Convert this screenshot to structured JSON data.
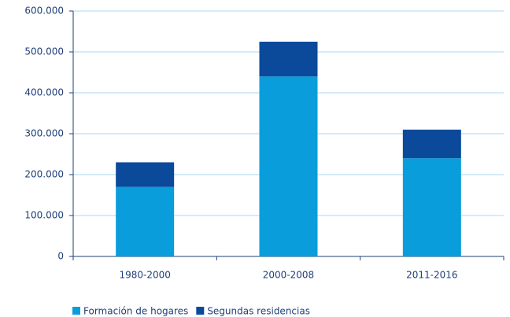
{
  "chart_data": {
    "type": "stacked_bar",
    "categories": [
      "1980-2000",
      "2000-2008",
      "2011-2016"
    ],
    "series": [
      {
        "name": "Formación de hogares",
        "color": "#0a9ddb",
        "values": [
          170000,
          440000,
          240000
        ]
      },
      {
        "name": "Segundas residencias",
        "color": "#0b4a9b",
        "values": [
          60000,
          85000,
          70000
        ]
      }
    ],
    "ylim": [
      0,
      600000
    ],
    "yticks": [
      0,
      {
        "value": 100000,
        "label": "100.000"
      },
      {
        "value": 200000,
        "label": "200.000"
      },
      {
        "value": 300000,
        "label": "300.000"
      },
      {
        "value": 400000,
        "label": "400.000"
      },
      {
        "value": 500000,
        "label": "500.000"
      },
      {
        "value": 600000,
        "label": "600.000"
      }
    ],
    "grid": true
  }
}
